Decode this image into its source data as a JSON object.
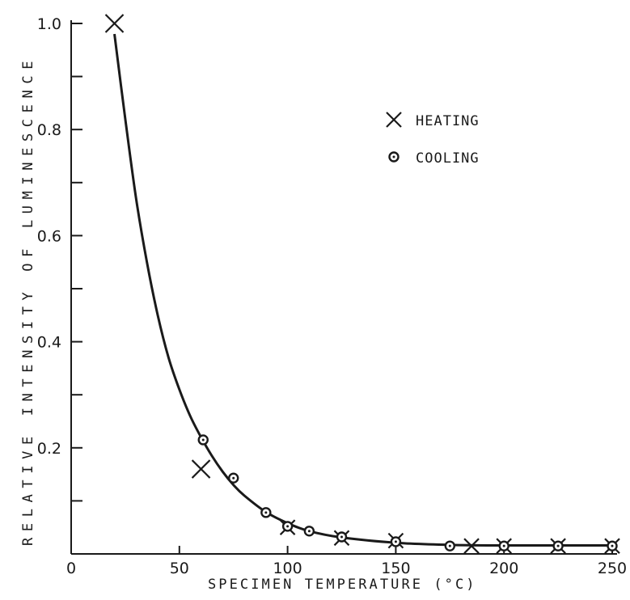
{
  "chart_data": {
    "type": "scatter",
    "title": "",
    "xlabel": "SPECIMEN TEMPERATURE (°C)",
    "ylabel": "RELATIVE INTENSITY OF LUMINESCENCE",
    "xlim": [
      0,
      250
    ],
    "ylim": [
      0,
      1.0
    ],
    "x_ticks": [
      0,
      50,
      100,
      150,
      200,
      250
    ],
    "y_ticks": [
      0.2,
      0.4,
      0.6,
      0.8,
      1.0
    ],
    "y_tick_labels": [
      "0.2",
      "0.4",
      "0.6",
      "0.8",
      "1.0"
    ],
    "grid": false,
    "legend_position": "top-right",
    "series": [
      {
        "name": "HEATING",
        "marker": "x",
        "points": [
          [
            20,
            1.0
          ],
          [
            60,
            0.16
          ],
          [
            100,
            0.05
          ],
          [
            125,
            0.03
          ],
          [
            150,
            0.025
          ],
          [
            185,
            0.015
          ],
          [
            200,
            0.015
          ],
          [
            225,
            0.015
          ],
          [
            250,
            0.015
          ]
        ]
      },
      {
        "name": "COOLING",
        "marker": "circle-dot",
        "points": [
          [
            61,
            0.215
          ],
          [
            75,
            0.143
          ],
          [
            90,
            0.078
          ],
          [
            100,
            0.052
          ],
          [
            110,
            0.043
          ],
          [
            125,
            0.032
          ],
          [
            150,
            0.023
          ],
          [
            175,
            0.015
          ],
          [
            200,
            0.015
          ],
          [
            225,
            0.015
          ],
          [
            250,
            0.015
          ]
        ]
      }
    ],
    "curve": [
      [
        20,
        0.98
      ],
      [
        25,
        0.82
      ],
      [
        30,
        0.67
      ],
      [
        35,
        0.55
      ],
      [
        40,
        0.45
      ],
      [
        45,
        0.37
      ],
      [
        50,
        0.31
      ],
      [
        55,
        0.26
      ],
      [
        60,
        0.22
      ],
      [
        65,
        0.185
      ],
      [
        70,
        0.155
      ],
      [
        75,
        0.13
      ],
      [
        80,
        0.11
      ],
      [
        90,
        0.079
      ],
      [
        100,
        0.058
      ],
      [
        110,
        0.043
      ],
      [
        125,
        0.031
      ],
      [
        150,
        0.021
      ],
      [
        175,
        0.017
      ],
      [
        200,
        0.016
      ],
      [
        225,
        0.016
      ],
      [
        250,
        0.016
      ]
    ]
  }
}
